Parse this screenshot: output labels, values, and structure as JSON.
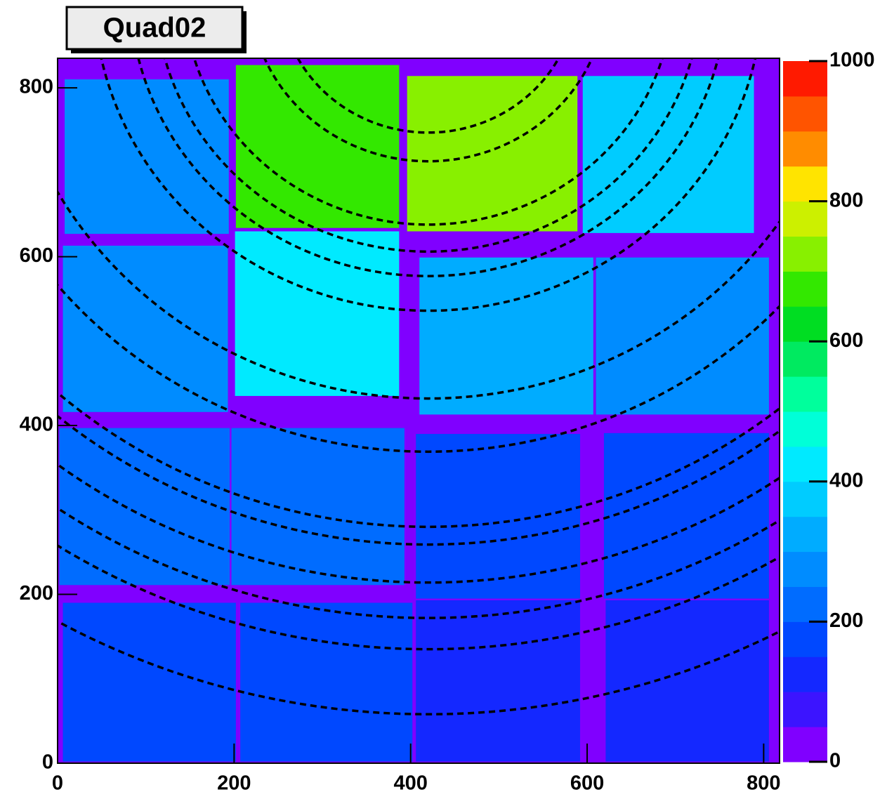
{
  "chart_data": {
    "type": "heatmap",
    "title": "Quad02",
    "xlim": [
      0,
      818
    ],
    "ylim": [
      0,
      835
    ],
    "xticks": [
      0,
      200,
      400,
      600,
      800
    ],
    "yticks": [
      0,
      200,
      400,
      600,
      800
    ],
    "zlim": [
      0,
      1000
    ],
    "zticks": [
      0,
      200,
      400,
      600,
      800,
      1000
    ],
    "colors": [
      "#8000ff",
      "#3c14ff",
      "#1428ff",
      "#0048ff",
      "#006cff",
      "#008cff",
      "#00acff",
      "#00ccff",
      "#00eaff",
      "#00ffd8",
      "#00ff9c",
      "#00ea60",
      "#00dd22",
      "#33e800",
      "#88f000",
      "#ccf000",
      "#ffe400",
      "#ff8c00",
      "#ff5400",
      "#ff1a00"
    ],
    "tiles": [
      {
        "x": [
          8,
          194
        ],
        "y": [
          627,
          810
        ],
        "value": 260
      },
      {
        "x": [
          202,
          387
        ],
        "y": [
          634,
          827
        ],
        "value": 660
      },
      {
        "x": [
          396,
          589
        ],
        "y": [
          630,
          814
        ],
        "value": 700
      },
      {
        "x": [
          595,
          789
        ],
        "y": [
          628,
          814
        ],
        "value": 360
      },
      {
        "x": [
          6,
          193
        ],
        "y": [
          416,
          613
        ],
        "value": 280
      },
      {
        "x": [
          201,
          387
        ],
        "y": [
          435,
          630
        ],
        "value": 430
      },
      {
        "x": [
          410,
          607
        ],
        "y": [
          413,
          599
        ],
        "value": 340
      },
      {
        "x": [
          610,
          806
        ],
        "y": [
          413,
          599
        ],
        "value": 290
      },
      {
        "x": [
          2,
          195
        ],
        "y": [
          211,
          397
        ],
        "value": 200
      },
      {
        "x": [
          197,
          393
        ],
        "y": [
          211,
          397
        ],
        "value": 220
      },
      {
        "x": [
          406,
          592
        ],
        "y": [
          195,
          390
        ],
        "value": 170
      },
      {
        "x": [
          619,
          806
        ],
        "y": [
          195,
          391
        ],
        "value": 190
      },
      {
        "x": [
          6,
          202
        ],
        "y": [
          2,
          190
        ],
        "value": 160
      },
      {
        "x": [
          207,
          402
        ],
        "y": [
          2,
          190
        ],
        "value": 160
      },
      {
        "x": [
          406,
          592
        ],
        "y": [
          2,
          193
        ],
        "value": 110
      },
      {
        "x": [
          621,
          806
        ],
        "y": [
          2,
          193
        ],
        "value": 110
      }
    ],
    "rings": {
      "center": [
        420,
        915
      ],
      "radii": [
        857,
        780,
        743,
        701,
        656,
        635,
        546,
        483,
        379,
        338,
        309,
        277,
        202,
        168
      ]
    }
  }
}
